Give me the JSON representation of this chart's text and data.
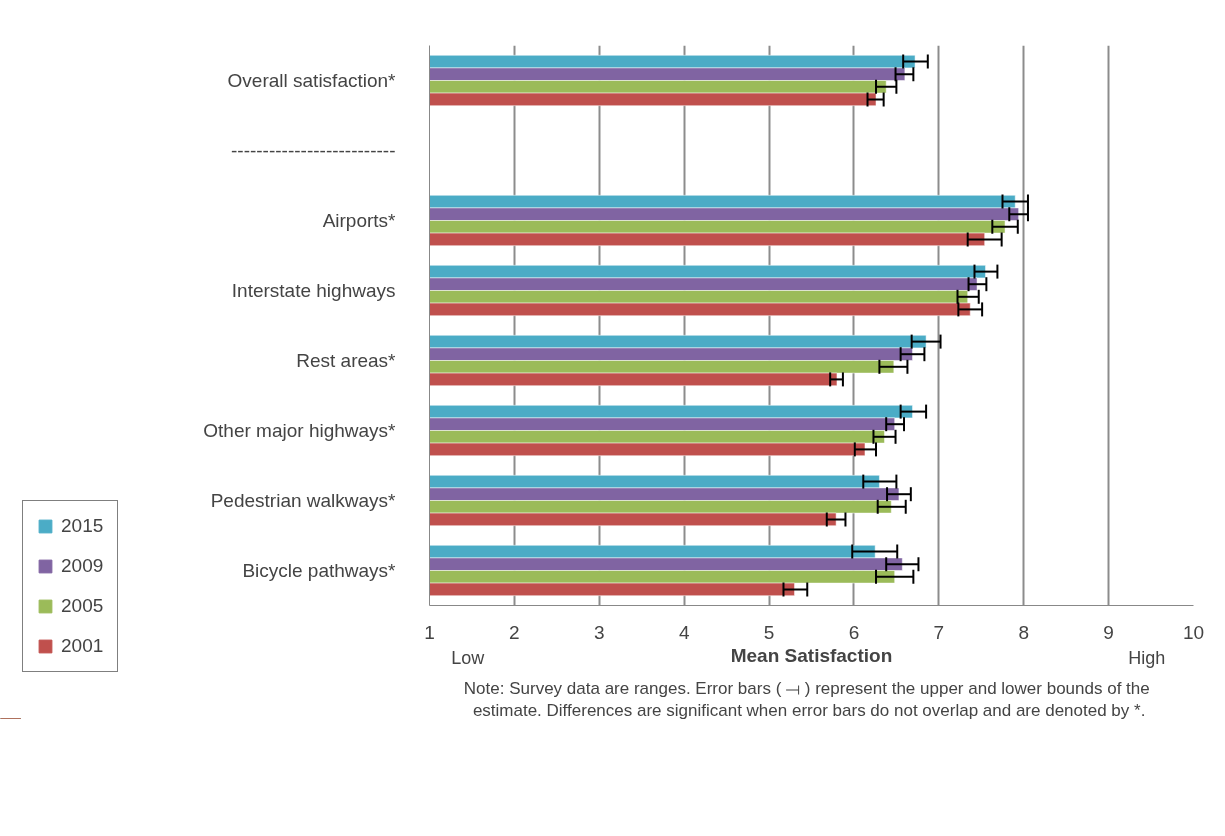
{
  "chart_data": {
    "type": "bar",
    "orientation": "horizontal",
    "xlabel": "Mean Satisfaction",
    "categories": [
      "Overall satisfaction*",
      "--------------------------",
      "Airports*",
      "Interstate highways",
      "Rest areas*",
      "Other major highways*",
      "Pedestrian walkways*",
      "Bicycle pathways*"
    ],
    "series": [
      {
        "name": "2015",
        "color": "#4bacc6",
        "values": [
          6.72,
          null,
          7.9,
          7.55,
          6.85,
          6.69,
          6.3,
          6.25
        ],
        "errors": [
          [
            6.58,
            6.87
          ],
          null,
          [
            7.75,
            8.05
          ],
          [
            7.42,
            7.69
          ],
          [
            6.68,
            7.02
          ],
          [
            6.55,
            6.85
          ],
          [
            6.11,
            6.5
          ],
          [
            5.98,
            6.51
          ]
        ]
      },
      {
        "name": "2009",
        "color": "#8064a2",
        "values": [
          6.6,
          null,
          7.94,
          7.45,
          6.69,
          6.48,
          6.53,
          6.57
        ],
        "errors": [
          [
            6.49,
            6.7
          ],
          null,
          [
            7.83,
            8.05
          ],
          [
            7.35,
            7.56
          ],
          [
            6.55,
            6.83
          ],
          [
            6.38,
            6.59
          ],
          [
            6.39,
            6.67
          ],
          [
            6.38,
            6.76
          ]
        ]
      },
      {
        "name": "2005",
        "color": "#9bbb59",
        "values": [
          6.38,
          null,
          7.78,
          7.34,
          6.47,
          6.36,
          6.44,
          6.48
        ],
        "errors": [
          [
            6.26,
            6.5
          ],
          null,
          [
            7.63,
            7.93
          ],
          [
            7.22,
            7.47
          ],
          [
            6.3,
            6.63
          ],
          [
            6.23,
            6.49
          ],
          [
            6.28,
            6.61
          ],
          [
            6.26,
            6.7
          ]
        ]
      },
      {
        "name": "2001",
        "color": "#c0504d",
        "values": [
          6.26,
          null,
          7.54,
          7.37,
          5.8,
          6.13,
          5.79,
          5.3
        ],
        "errors": [
          [
            6.16,
            6.35
          ],
          null,
          [
            7.34,
            7.74
          ],
          [
            7.23,
            7.51
          ],
          [
            5.72,
            5.87
          ],
          [
            6.01,
            6.26
          ],
          [
            5.68,
            5.9
          ],
          [
            5.17,
            5.45
          ]
        ]
      }
    ],
    "xlim": [
      1,
      10
    ],
    "xticks": [
      1,
      2,
      3,
      4,
      5,
      6,
      7,
      8,
      9,
      10
    ],
    "grid": "x",
    "legend": "bottom left",
    "annotations": [
      "Low",
      "High",
      "Note:  Survey data are ranges.  Error bars ( ⟞ ) represent the upper and lower bounds of the estimate.  Differences are significant when error bars do not overlap and are denoted by *."
    ]
  }
}
